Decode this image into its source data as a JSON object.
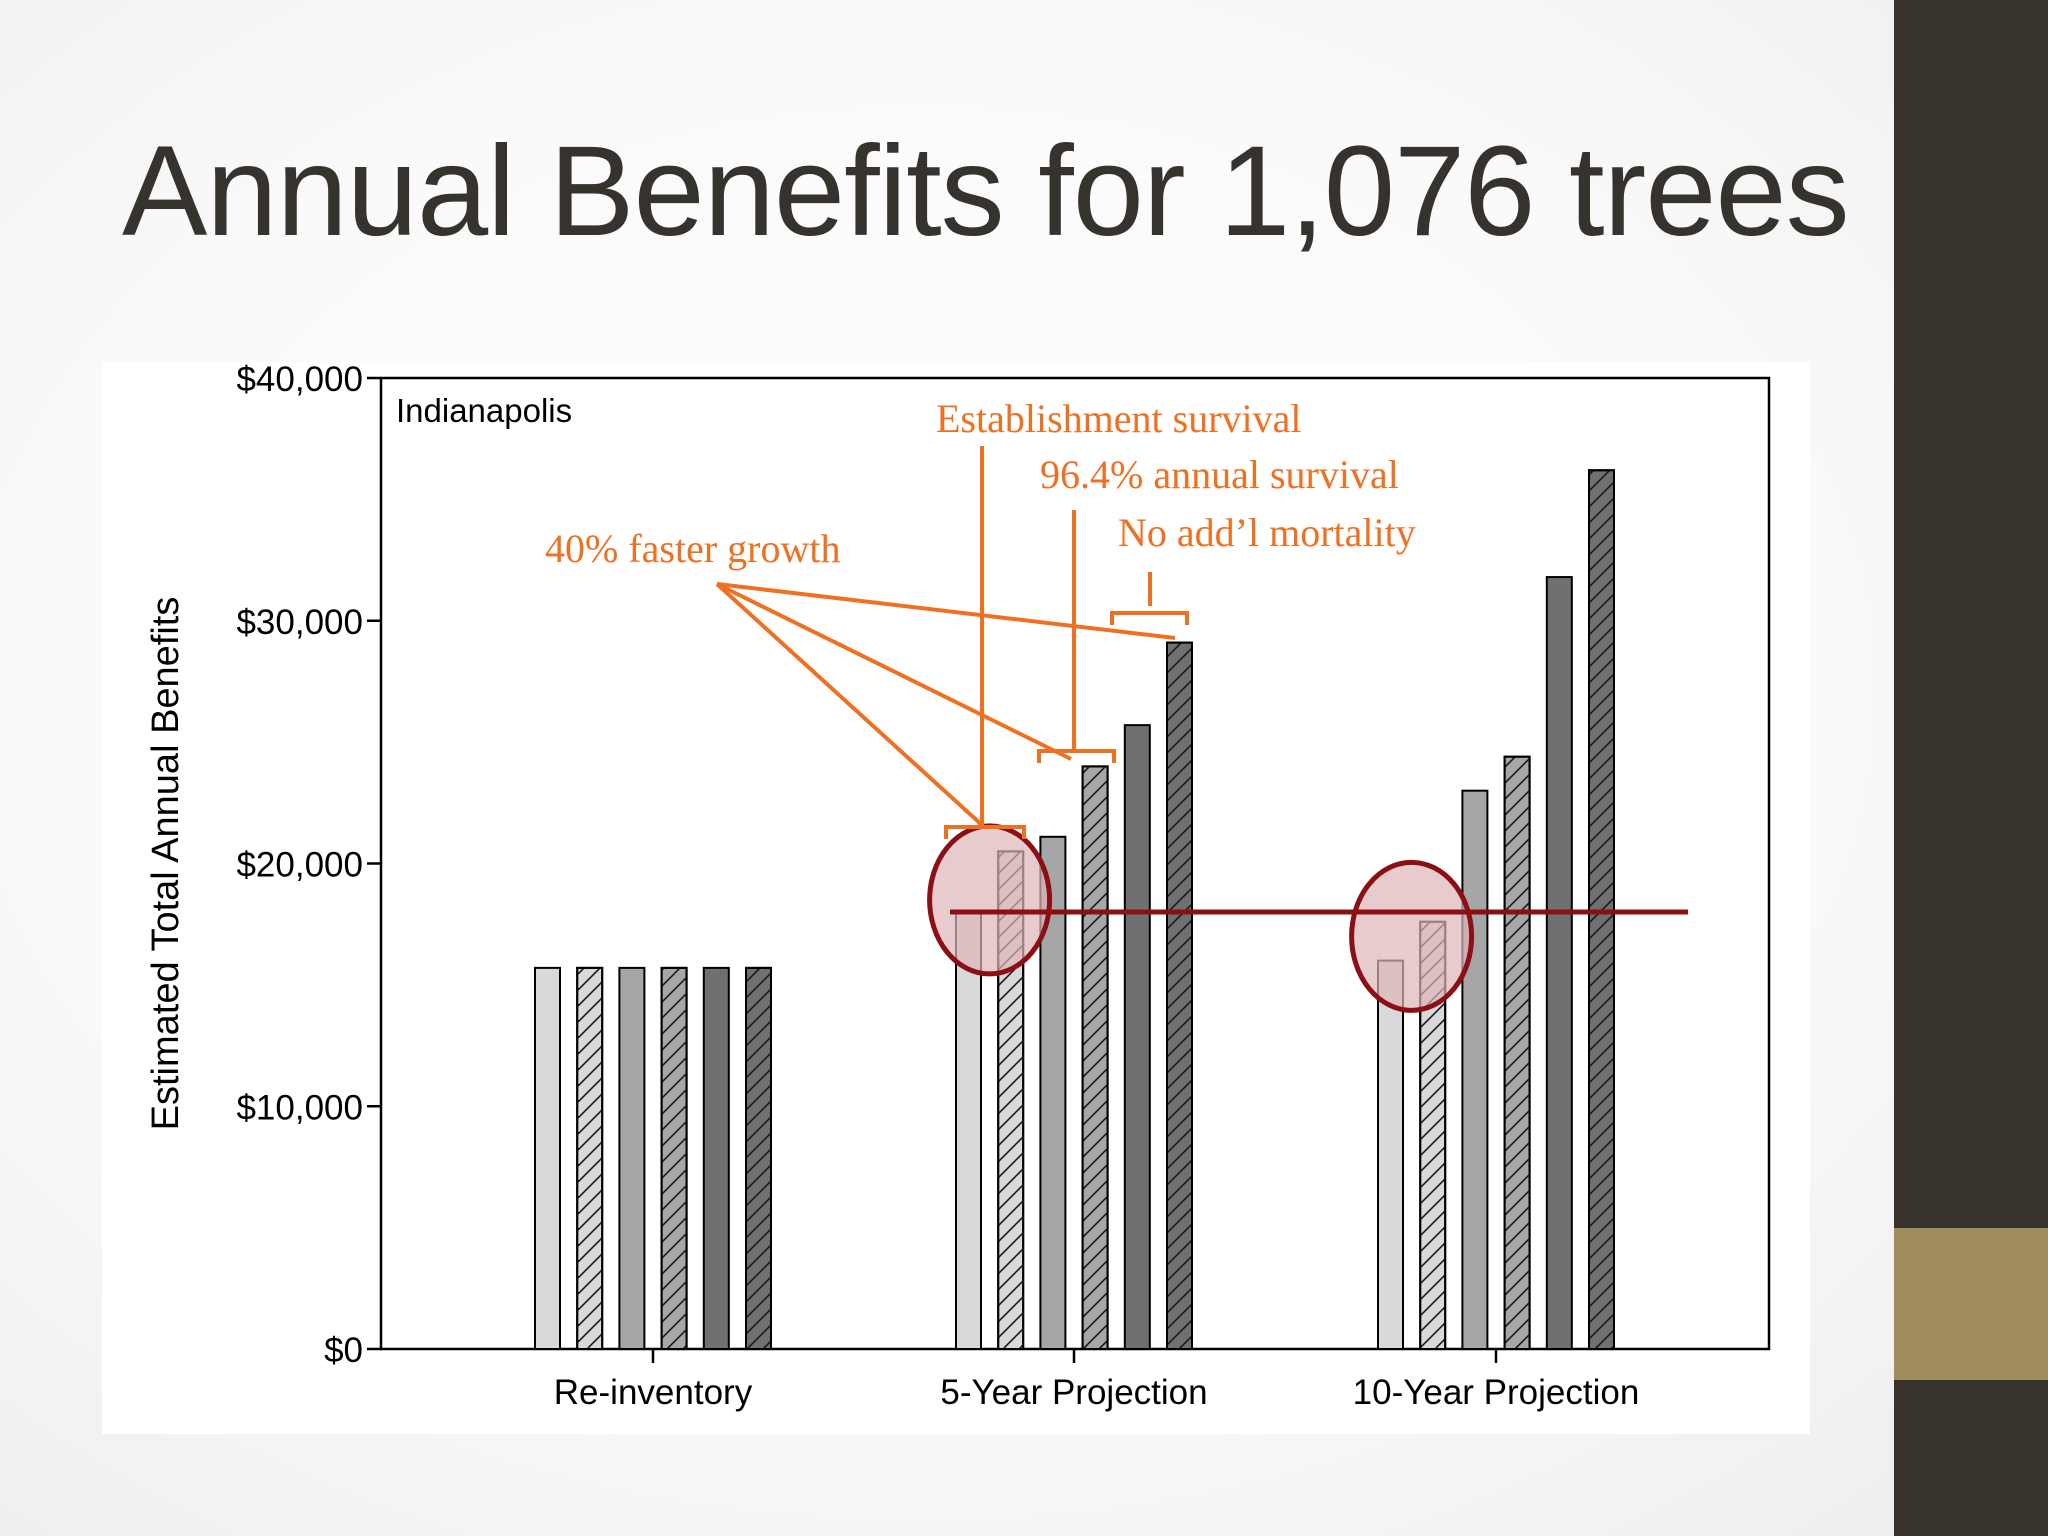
{
  "slide": {
    "title": "Annual Benefits for 1,076 trees"
  },
  "colors": {
    "title_text": "#36322e",
    "sidebar": "#37322b",
    "sidebar_accent": "#9f8d5e",
    "annotation_orange": "#f07022",
    "reference_line": "#8b0f14",
    "circle_fill": "#deb5b8"
  },
  "chart_data": {
    "type": "bar",
    "panel_label": "Indianapolis",
    "ylabel": "Estimated Total Annual Benefits",
    "xlabel": "",
    "ylim": [
      0,
      40000
    ],
    "yticks": [
      0,
      10000,
      20000,
      30000,
      40000
    ],
    "ytick_labels": [
      "$0",
      "$10,000",
      "$20,000",
      "$30,000",
      "$40,000"
    ],
    "categories": [
      "Re-inventory",
      "5-Year Projection",
      "10-Year Projection"
    ],
    "series": [
      {
        "fill": "#d9d9db",
        "hatched": false,
        "values": [
          15700,
          18000,
          16000
        ]
      },
      {
        "fill": "#d9d9db",
        "hatched": true,
        "values": [
          15700,
          20500,
          17600
        ]
      },
      {
        "fill": "#a6a6a9",
        "hatched": false,
        "values": [
          15700,
          21100,
          23000
        ]
      },
      {
        "fill": "#a6a6a9",
        "hatched": true,
        "values": [
          15700,
          24000,
          24400
        ]
      },
      {
        "fill": "#707073",
        "hatched": false,
        "values": [
          15700,
          25700,
          31800
        ]
      },
      {
        "fill": "#707073",
        "hatched": true,
        "values": [
          15700,
          29100,
          36200
        ]
      }
    ],
    "reference_line_value": 18000,
    "highlight_circles": [
      {
        "category": "5-Year Projection",
        "center_value": 18500
      },
      {
        "category": "10-Year Projection",
        "center_value": 17000
      }
    ],
    "annotations": {
      "faster_growth": "40% faster growth",
      "establishment": "Establishment survival",
      "annual_survival": "96.4% annual survival",
      "no_mortality": "No add’l mortality"
    }
  }
}
